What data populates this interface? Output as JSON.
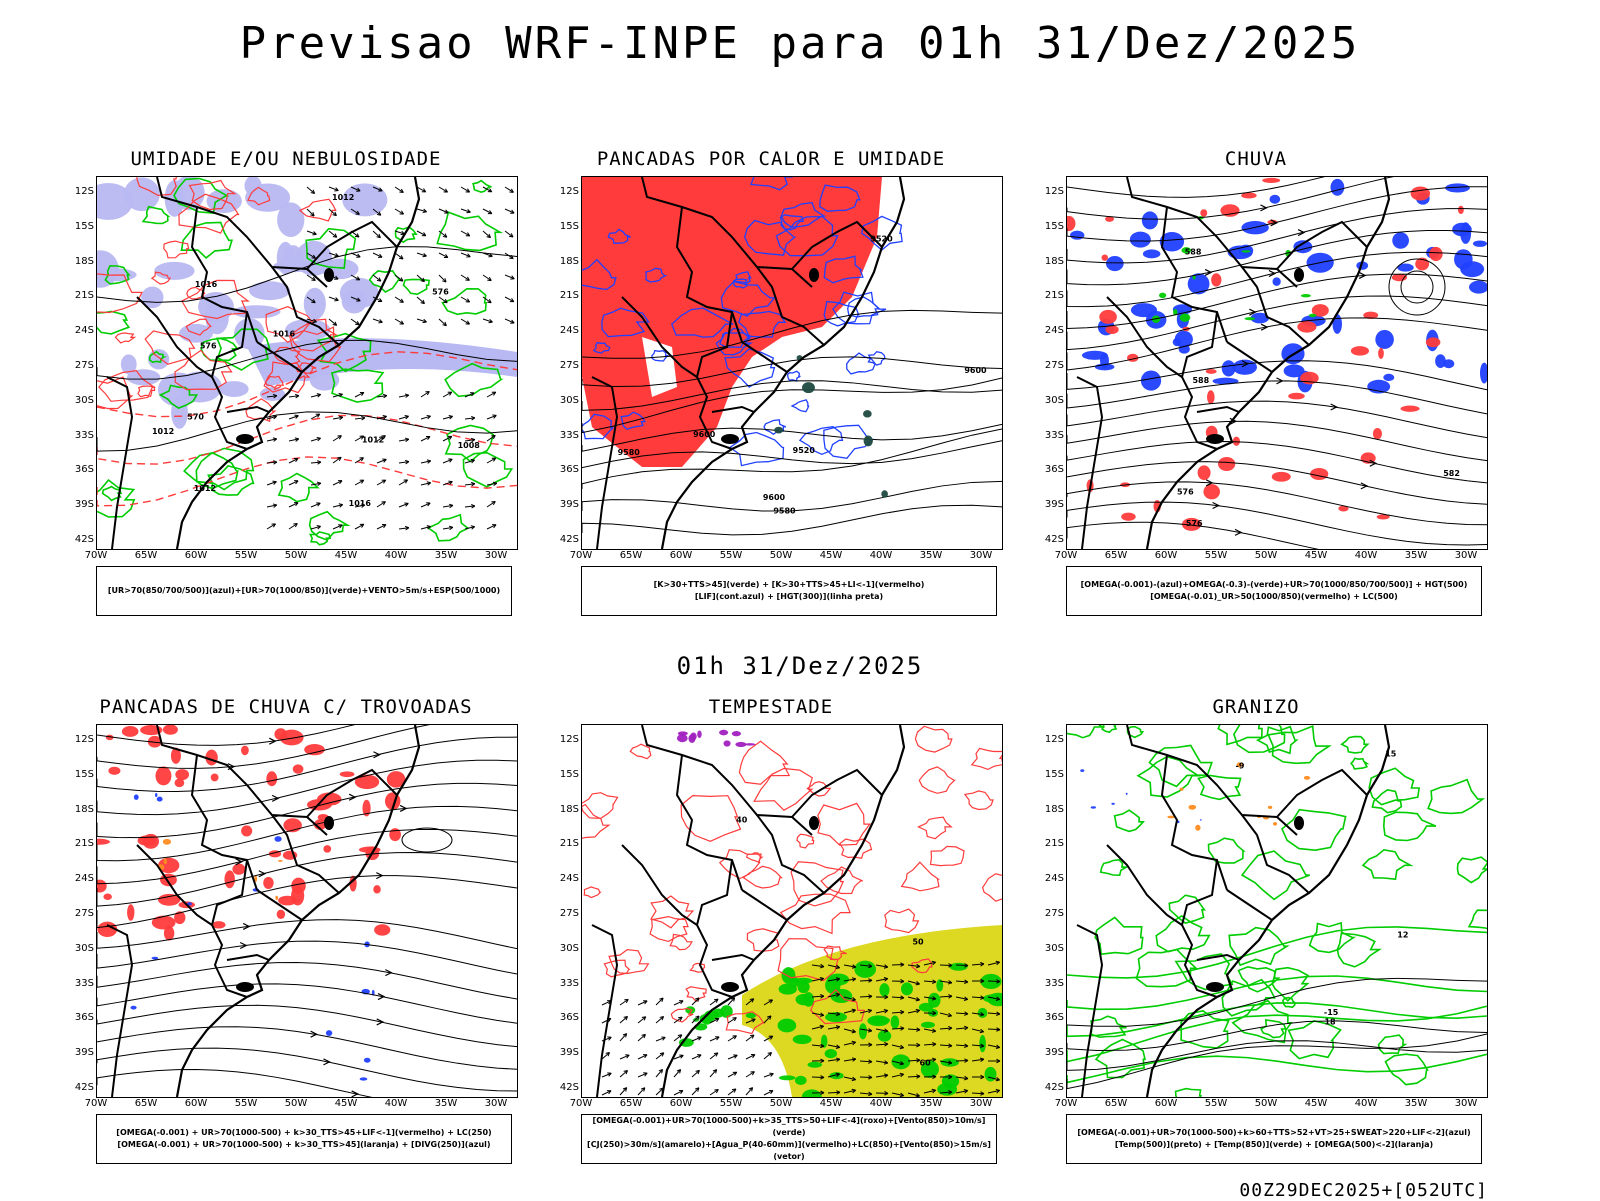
{
  "title": "Previsao WRF-INPE  para 01h 31/Dez/2025",
  "subtitle": "01h 31/Dez/2025",
  "footer": "00Z29DEC2025+[052UTC]",
  "latitudes": [
    "12S",
    "15S",
    "18S",
    "21S",
    "24S",
    "27S",
    "30S",
    "33S",
    "36S",
    "39S",
    "42S"
  ],
  "longitudes": [
    "70W",
    "65W",
    "60W",
    "55W",
    "50W",
    "45W",
    "40W",
    "35W",
    "30W"
  ],
  "panels": [
    {
      "id": "umidade",
      "title": "UMIDADE E/OU NEBULOSIDADE",
      "legend": [
        "[UR>70(850/700/500)](azul)+[UR>70(1000/850)](verde)+VENTO>5m/s+ESP(500/1000)"
      ],
      "labels": [
        "1012",
        "1012",
        "1012",
        "1016",
        "1016",
        "1008",
        "1016",
        "1012",
        "576",
        "570",
        "576"
      ]
    },
    {
      "id": "pancadas",
      "title": "PANCADAS POR CALOR E UMIDADE",
      "legend": [
        "[K>30+TTS>45](verde) + [K>30+TTS>45+LI<-1](vermelho)",
        "[LIF](cont.azul) + [HGT(300)](linha preta)"
      ],
      "labels": [
        "9600",
        "9580",
        "9580",
        "9520",
        "9600",
        "9520",
        "9600"
      ]
    },
    {
      "id": "chuva",
      "title": "CHUVA",
      "legend": [
        "[OMEGA(-0.001)-(azul)+OMEGA(-0.3)-(verde)+UR>70(1000/850/700/500)] + HGT(500)",
        "[OMEGA(-0.01)_UR>50(1000/850)(vermelho) + LC(500)"
      ],
      "labels": [
        "588",
        "588",
        "582",
        "576",
        "576"
      ]
    },
    {
      "id": "trovoadas",
      "title": "PANCADAS DE CHUVA C/ TROVOADAS",
      "legend": [
        "[OMEGA(-0.001) + UR>70(1000-500) + k>30_TTS>45+LIF<-1](vermelho) + LC(250)",
        "[OMEGA(-0.001) + UR>70(1000-500) + k>30_TTS>45](laranja) + [DIVG(250)](azul)"
      ],
      "labels": []
    },
    {
      "id": "tempestade",
      "title": "TEMPESTADE",
      "legend": [
        "[OMEGA(-0.001)+UR>70(1000-500)+k>35_TTS>50+LIF<-4](roxo)+[Vento(850)>10m/s](verde)",
        "[CJ(250)>30m/s](amarelo)+[Agua_P(40-60mm)](vermelho)+LC(850)+[Vento(850)>15m/s](vetor)"
      ],
      "labels": [
        "40",
        "50",
        "60"
      ]
    },
    {
      "id": "granizo",
      "title": "GRANIZO",
      "legend": [
        "[OMEGA(-0.001)+UR>70(1000-500)+k>60+TTS>52+VT>25+SWEAT>220+LIF<-2](azul)",
        "[Temp(500)](preto) + [Temp(850)](verde) + [OMEGA(500)<-2](laranja)"
      ],
      "labels": [
        "-9",
        "-15",
        "15",
        "12",
        "18"
      ]
    }
  ],
  "colors": {
    "blue": "#2040ff",
    "green": "#00cc00",
    "red": "#ff3b3b",
    "lavender": "#b8b8f2",
    "yellow": "#ddd822",
    "purple": "#a020c0",
    "orange": "#ff8c20"
  }
}
